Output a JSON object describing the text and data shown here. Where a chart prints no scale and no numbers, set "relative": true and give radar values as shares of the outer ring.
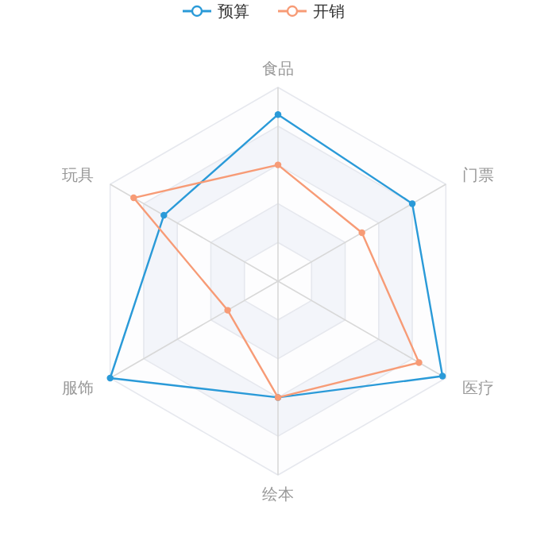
{
  "chart_data": {
    "type": "radar",
    "relative": true,
    "categories": [
      "食品",
      "门票",
      "医疗",
      "绘本",
      "服饰",
      "玩具"
    ],
    "series": [
      {
        "name": "预算",
        "color": "#2a9ad8",
        "values": [
          0.86,
          0.8,
          0.98,
          0.6,
          1.0,
          0.68
        ]
      },
      {
        "name": "开销",
        "color": "#f79b76",
        "values": [
          0.6,
          0.5,
          0.84,
          0.6,
          0.3,
          0.86
        ]
      }
    ],
    "legend": "top",
    "marker": "circle",
    "line_style": "solid"
  }
}
